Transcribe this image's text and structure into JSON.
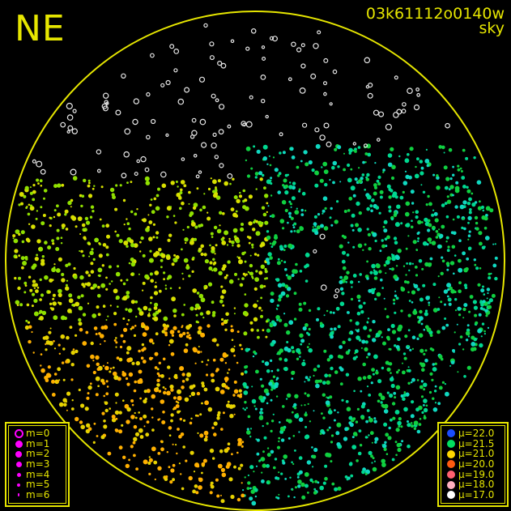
{
  "header": {
    "direction": "NE",
    "image_id": "03k61112o0140w",
    "map_type": "sky"
  },
  "colors": {
    "frame": "#e6e600",
    "background": "#000000",
    "magnitude_marker": "#ff00ff"
  },
  "magnitude_legend": [
    {
      "label": "m=0",
      "marker": "hollow-circle"
    },
    {
      "label": "m=1",
      "marker": "filled-dot"
    },
    {
      "label": "m=2",
      "marker": "filled-dot"
    },
    {
      "label": "m=3",
      "marker": "filled-dot"
    },
    {
      "label": "m=4",
      "marker": "filled-dot"
    },
    {
      "label": "m=5",
      "marker": "filled-dot"
    },
    {
      "label": "m=6",
      "marker": "filled-dot"
    }
  ],
  "brightness_legend": [
    {
      "label": "μ=22.0",
      "color": "#1a4cff"
    },
    {
      "label": "μ=21.5",
      "color": "#00e060"
    },
    {
      "label": "μ=21.0",
      "color": "#ffd700"
    },
    {
      "label": "μ=20.0",
      "color": "#ff5a10"
    },
    {
      "label": "μ=19.0",
      "color": "#ff6070"
    },
    {
      "label": "μ=18.0",
      "color": "#ffb0c0"
    },
    {
      "label": "μ=17.0",
      "color": "#ffffff"
    }
  ]
}
